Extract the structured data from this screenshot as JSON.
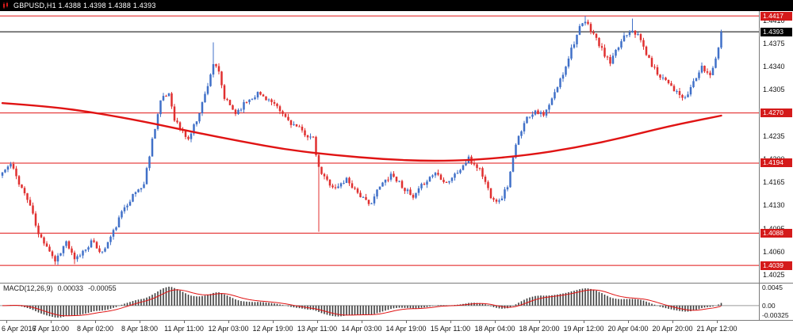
{
  "title_bar": {
    "text": "GBPUSD,H1 1.4388 1.4398 1.4388 1.4393"
  },
  "chart_data": {
    "type": "candlestick",
    "symbol": "GBPUSD",
    "timeframe": "H1",
    "ohlc": {
      "open": "1.4388",
      "high": "1.4398",
      "low": "1.4388",
      "close": "1.4393"
    },
    "current_price": "1.4393",
    "levels": [
      "1.4417",
      "1.4270",
      "1.4194",
      "1.4088",
      "1.4039"
    ],
    "y_axis_ticks": [
      "1.4410",
      "1.4375",
      "1.4340",
      "1.4305",
      "1.4270",
      "1.4235",
      "1.4200",
      "1.4165",
      "1.4130",
      "1.4095",
      "1.4060",
      "1.4025"
    ],
    "x_axis_labels": [
      "6 Apr 2016",
      "7 Apr 10:00",
      "8 Apr 02:00",
      "8 Apr 18:00",
      "11 Apr 11:00",
      "12 Apr 03:00",
      "12 Apr 19:00",
      "13 Apr 11:00",
      "14 Apr 03:00",
      "14 Apr 19:00",
      "15 Apr 11:00",
      "18 Apr 04:00",
      "18 Apr 20:00",
      "19 Apr 12:00",
      "20 Apr 04:00",
      "20 Apr 20:00",
      "21 Apr 12:00"
    ],
    "total_bars": 260,
    "noise_seed": 11,
    "price_path": [
      [
        0,
        1.418
      ],
      [
        3,
        1.4192
      ],
      [
        6,
        1.4165
      ],
      [
        10,
        1.413
      ],
      [
        13,
        1.4085
      ],
      [
        16,
        1.407
      ],
      [
        19,
        1.4046
      ],
      [
        23,
        1.4075
      ],
      [
        26,
        1.4046
      ],
      [
        30,
        1.4065
      ],
      [
        32,
        1.4075
      ],
      [
        36,
        1.4058
      ],
      [
        40,
        1.409
      ],
      [
        44,
        1.4128
      ],
      [
        48,
        1.415
      ],
      [
        51,
        1.4162
      ],
      [
        54,
        1.423
      ],
      [
        57,
        1.4288
      ],
      [
        60,
        1.43
      ],
      [
        62,
        1.4262
      ],
      [
        64,
        1.4246
      ],
      [
        67,
        1.423
      ],
      [
        70,
        1.426
      ],
      [
        73,
        1.4298
      ],
      [
        76,
        1.4345
      ],
      [
        78,
        1.433
      ],
      [
        80,
        1.4292
      ],
      [
        84,
        1.427
      ],
      [
        88,
        1.4288
      ],
      [
        92,
        1.43
      ],
      [
        96,
        1.429
      ],
      [
        100,
        1.4272
      ],
      [
        104,
        1.4255
      ],
      [
        108,
        1.4242
      ],
      [
        112,
        1.423
      ],
      [
        114,
        1.4185
      ],
      [
        116,
        1.4172
      ],
      [
        120,
        1.4155
      ],
      [
        124,
        1.417
      ],
      [
        128,
        1.415
      ],
      [
        132,
        1.413
      ],
      [
        136,
        1.4158
      ],
      [
        140,
        1.4178
      ],
      [
        144,
        1.416
      ],
      [
        148,
        1.414
      ],
      [
        152,
        1.4165
      ],
      [
        156,
        1.418
      ],
      [
        160,
        1.4165
      ],
      [
        164,
        1.418
      ],
      [
        168,
        1.42
      ],
      [
        172,
        1.4185
      ],
      [
        176,
        1.4145
      ],
      [
        179,
        1.4135
      ],
      [
        182,
        1.416
      ],
      [
        185,
        1.422
      ],
      [
        188,
        1.4258
      ],
      [
        192,
        1.4275
      ],
      [
        195,
        1.4265
      ],
      [
        198,
        1.429
      ],
      [
        202,
        1.433
      ],
      [
        205,
        1.4368
      ],
      [
        208,
        1.4398
      ],
      [
        210,
        1.4408
      ],
      [
        213,
        1.439
      ],
      [
        216,
        1.4365
      ],
      [
        219,
        1.4345
      ],
      [
        222,
        1.437
      ],
      [
        224,
        1.4388
      ],
      [
        227,
        1.4398
      ],
      [
        230,
        1.438
      ],
      [
        233,
        1.435
      ],
      [
        236,
        1.433
      ],
      [
        240,
        1.4318
      ],
      [
        243,
        1.43
      ],
      [
        246,
        1.429
      ],
      [
        249,
        1.4318
      ],
      [
        252,
        1.4338
      ],
      [
        255,
        1.4328
      ],
      [
        258,
        1.4368
      ],
      [
        259,
        1.4393
      ]
    ],
    "wick_events": [
      {
        "bar": 20,
        "low": 1.404
      },
      {
        "bar": 26,
        "low": 1.4041
      },
      {
        "bar": 76,
        "high": 1.4377
      },
      {
        "bar": 114,
        "low": 1.409
      },
      {
        "bar": 210,
        "high": 1.4417
      },
      {
        "bar": 227,
        "high": 1.4413
      }
    ],
    "ma_path": [
      [
        0,
        1.4285
      ],
      [
        17,
        1.428
      ],
      [
        34,
        1.427
      ],
      [
        51,
        1.4257
      ],
      [
        69,
        1.4241
      ],
      [
        86,
        1.4227
      ],
      [
        103,
        1.4214
      ],
      [
        120,
        1.4206
      ],
      [
        137,
        1.42
      ],
      [
        154,
        1.4197
      ],
      [
        171,
        1.4199
      ],
      [
        189,
        1.4206
      ],
      [
        206,
        1.4217
      ],
      [
        223,
        1.4232
      ],
      [
        240,
        1.425
      ],
      [
        259,
        1.4266
      ]
    ],
    "macd": {
      "label": "MACD(12,26,9)",
      "value": "0.00033",
      "signal_value": "-0.00055",
      "axis_ticks": [
        "0.0045",
        "0.00",
        "-0.00325"
      ],
      "fast": 12,
      "slow": 26,
      "signal": 9
    },
    "colors": {
      "bull": "#4070c8",
      "bear": "#e03030",
      "ma": "#e01414",
      "level_line": "#e01414",
      "price_line": "#000000",
      "histogram": "#3d3d3d",
      "signal_line": "#e01414",
      "badge_red": "#d41a1a",
      "badge_black": "#000000",
      "axis_text": "#141414"
    }
  }
}
